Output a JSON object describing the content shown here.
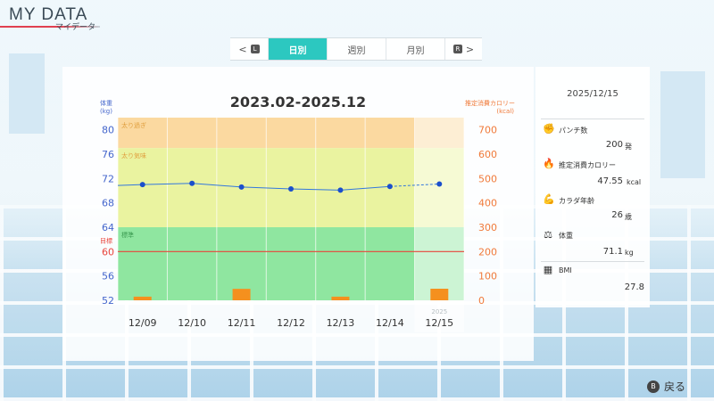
{
  "header": {
    "title": "MY DATA",
    "subtitle": "マイデータ"
  },
  "tabs": {
    "prev_badge": "L",
    "next_badge": "R",
    "items": [
      {
        "label": "日別",
        "active": true
      },
      {
        "label": "週別",
        "active": false
      },
      {
        "label": "月別",
        "active": false
      }
    ]
  },
  "chart_data": {
    "type": "bar+line",
    "title": "2023.02-2025.12",
    "categories": [
      "12/09",
      "12/10",
      "12/11",
      "12/12",
      "12/13",
      "12/14",
      "12/15"
    ],
    "year_label": "2025",
    "left_axis": {
      "label_line1": "体重",
      "label_line2": "(kg)",
      "ticks": [
        80,
        76,
        72,
        68,
        64,
        60,
        56,
        52
      ],
      "range": [
        52,
        82
      ],
      "highlight_tick": 60
    },
    "right_axis": {
      "label_line1": "推定消費カロリー",
      "label_line2": "(kcal)",
      "ticks": [
        700,
        600,
        500,
        400,
        300,
        200,
        100,
        0
      ],
      "range": [
        0,
        750
      ]
    },
    "zones": [
      {
        "label": "太り過ぎ",
        "from": 77,
        "to": 82,
        "color": "#fbd9a0"
      },
      {
        "label": "太り気味",
        "from": 64,
        "to": 77,
        "color": "#eaf3a0"
      },
      {
        "label": "標準",
        "from": 52,
        "to": 64,
        "color": "#8fe6a0"
      }
    ],
    "goal": {
      "label": "目標",
      "value": 60,
      "color": "#e8453c"
    },
    "weight_series": [
      71.0,
      71.2,
      70.6,
      70.3,
      70.1,
      70.7,
      71.1
    ],
    "calorie_series": [
      15,
      0,
      47,
      0,
      15,
      0,
      47.55
    ],
    "line_color": "#3377dd",
    "bar_color": "#f5901e",
    "left_axis_color": "#4466cc",
    "right_axis_color": "#f07a3a"
  },
  "side": {
    "date": "2025/12/15",
    "stats": [
      {
        "icon": "fist-icon",
        "label": "パンチ数",
        "value": "200",
        "unit": "発"
      },
      {
        "icon": "flame-icon",
        "label": "推定消費カロリー",
        "value": "47.55",
        "unit": "kcal"
      },
      {
        "icon": "muscle-icon",
        "label": "カラダ年齢",
        "value": "26",
        "unit": "歳"
      },
      {
        "icon": "scale-icon",
        "label": "体重",
        "value": "71.1",
        "unit": "kg"
      },
      {
        "icon": "calculator-icon",
        "label": "BMI",
        "value": "27.8",
        "unit": ""
      }
    ]
  },
  "footer": {
    "back_badge": "B",
    "back_label": "戻る"
  }
}
